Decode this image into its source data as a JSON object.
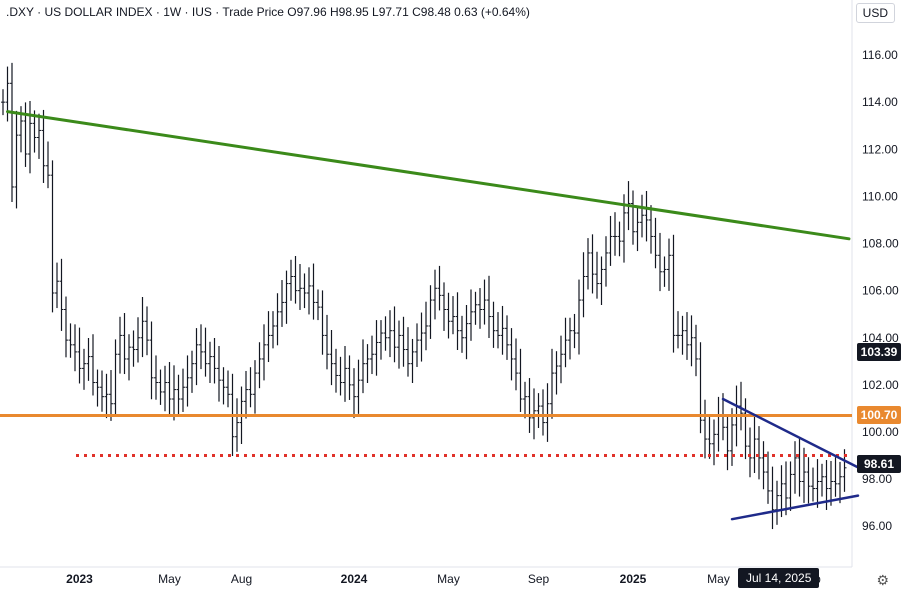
{
  "header": {
    "symbol": ".DXY",
    "sep1": " · ",
    "name": "US DOLLAR INDEX",
    "interval": "1W",
    "exchange": "IUS",
    "price_type": "Trade Price",
    "open_label": "O",
    "open": "97.96",
    "high_label": "H",
    "high": "98.95",
    "low_label": "L",
    "low": "97.71",
    "close_label": "C",
    "close": "98.48",
    "change": "0.63",
    "change_pct": "(+0.64%)"
  },
  "currency": "USD",
  "price_tags": {
    "tag1": {
      "value": "103.39",
      "color": "#131722"
    },
    "tag2": {
      "value": "100.70",
      "color": "#e9892f"
    },
    "tag3": {
      "value": "98.61",
      "color": "#131722"
    }
  },
  "crosshair_date": "Jul 14, 2025",
  "chart_data": {
    "type": "ohlc-bar",
    "title": ".DXY · US DOLLAR INDEX · 1W · IUS",
    "ylim": [
      95.0,
      117.5
    ],
    "yticks": [
      "116.00",
      "114.00",
      "112.00",
      "110.00",
      "108.00",
      "106.00",
      "104.00",
      "102.00",
      "100.00",
      "98.00",
      "96.00"
    ],
    "xticks": [
      "2023",
      "May",
      "Aug",
      "2024",
      "May",
      "Sep",
      "2025",
      "May",
      "p"
    ],
    "grid": false,
    "colors": {
      "bars": "#131722",
      "resistance_trendline": "#3b8a1a",
      "support_level": "#e9892f",
      "dotted_level": "#e0312a",
      "triangle_lines": "#1f2a8a"
    },
    "series": [
      {
        "points": [
          [
            0,
            114.0
          ],
          [
            1,
            114.8
          ],
          [
            2,
            110.4
          ],
          [
            3,
            112.6
          ],
          [
            4,
            113.2
          ],
          [
            5,
            111.8
          ],
          [
            6,
            113.1
          ],
          [
            7,
            112.5
          ],
          [
            8,
            112.8
          ],
          [
            9,
            111.3
          ],
          [
            10,
            110.9
          ],
          [
            11,
            105.9
          ],
          [
            12,
            106.4
          ],
          [
            13,
            105.2
          ],
          [
            14,
            103.9
          ],
          [
            15,
            103.7
          ],
          [
            16,
            103.4
          ],
          [
            17,
            102.7
          ],
          [
            18,
            102.9
          ],
          [
            19,
            103.2
          ],
          [
            20,
            102.1
          ],
          [
            21,
            101.9
          ],
          [
            22,
            101.5
          ],
          [
            23,
            101.6
          ],
          [
            24,
            101.2
          ],
          [
            25,
            103.3
          ],
          [
            26,
            104.1
          ],
          [
            27,
            103.1
          ],
          [
            28,
            103.6
          ],
          [
            29,
            103.5
          ],
          [
            30,
            104.0
          ],
          [
            31,
            104.7
          ],
          [
            32,
            103.9
          ],
          [
            33,
            102.3
          ],
          [
            34,
            102.1
          ],
          [
            35,
            101.7
          ],
          [
            36,
            102.1
          ],
          [
            37,
            101.4
          ],
          [
            38,
            101.8
          ],
          [
            39,
            101.4
          ],
          [
            40,
            101.9
          ],
          [
            41,
            102.3
          ],
          [
            42,
            102.9
          ],
          [
            43,
            103.7
          ],
          [
            44,
            103.4
          ],
          [
            45,
            102.9
          ],
          [
            46,
            103.2
          ],
          [
            47,
            102.7
          ],
          [
            48,
            102.2
          ],
          [
            49,
            101.9
          ],
          [
            50,
            101.6
          ],
          [
            51,
            99.8
          ],
          [
            52,
            100.4
          ],
          [
            53,
            101.3
          ],
          [
            54,
            101.8
          ],
          [
            55,
            101.6
          ],
          [
            56,
            102.5
          ],
          [
            57,
            103.1
          ],
          [
            58,
            103.7
          ],
          [
            59,
            104.1
          ],
          [
            60,
            104.5
          ],
          [
            61,
            105.1
          ],
          [
            62,
            105.5
          ],
          [
            63,
            106.3
          ],
          [
            64,
            106.6
          ],
          [
            65,
            106.0
          ],
          [
            66,
            106.1
          ],
          [
            67,
            105.9
          ],
          [
            68,
            106.2
          ],
          [
            69,
            105.5
          ],
          [
            70,
            105.3
          ],
          [
            71,
            104.1
          ],
          [
            72,
            103.3
          ],
          [
            73,
            102.9
          ],
          [
            74,
            102.4
          ],
          [
            75,
            102.1
          ],
          [
            76,
            102.7
          ],
          [
            77,
            102.0
          ],
          [
            78,
            101.5
          ],
          [
            79,
            102.2
          ],
          [
            80,
            102.9
          ],
          [
            81,
            103.1
          ],
          [
            82,
            103.3
          ],
          [
            83,
            103.8
          ],
          [
            84,
            104.2
          ],
          [
            85,
            104.0
          ],
          [
            86,
            104.3
          ],
          [
            87,
            103.6
          ],
          [
            88,
            104.1
          ],
          [
            89,
            103.5
          ],
          [
            90,
            102.9
          ],
          [
            91,
            103.4
          ],
          [
            92,
            103.9
          ],
          [
            93,
            104.2
          ],
          [
            94,
            104.5
          ],
          [
            95,
            105.6
          ],
          [
            96,
            106.1
          ],
          [
            97,
            105.8
          ],
          [
            98,
            105.2
          ],
          [
            99,
            104.7
          ],
          [
            100,
            104.9
          ],
          [
            101,
            104.3
          ],
          [
            102,
            104.0
          ],
          [
            103,
            104.6
          ],
          [
            104,
            105.1
          ],
          [
            105,
            105.4
          ],
          [
            106,
            105.2
          ],
          [
            107,
            105.6
          ],
          [
            108,
            104.9
          ],
          [
            109,
            104.3
          ],
          [
            110,
            104.1
          ],
          [
            111,
            104.4
          ],
          [
            112,
            103.7
          ],
          [
            113,
            103.1
          ],
          [
            114,
            102.5
          ],
          [
            115,
            101.4
          ],
          [
            116,
            101.5
          ],
          [
            117,
            100.6
          ],
          [
            118,
            100.9
          ],
          [
            119,
            101.1
          ],
          [
            120,
            100.4
          ],
          [
            121,
            101.2
          ],
          [
            122,
            102.5
          ],
          [
            123,
            102.8
          ],
          [
            124,
            103.3
          ],
          [
            125,
            103.9
          ],
          [
            126,
            104.3
          ],
          [
            127,
            104.2
          ],
          [
            128,
            105.6
          ],
          [
            129,
            106.6
          ],
          [
            130,
            107.6
          ],
          [
            131,
            106.7
          ],
          [
            132,
            106.3
          ],
          [
            133,
            106.9
          ],
          [
            134,
            107.6
          ],
          [
            135,
            108.3
          ],
          [
            136,
            108.3
          ],
          [
            137,
            108.1
          ],
          [
            138,
            109.3
          ],
          [
            139,
            109.7
          ],
          [
            140,
            108.5
          ],
          [
            141,
            108.9
          ],
          [
            142,
            109.2
          ],
          [
            143,
            109.0
          ],
          [
            144,
            108.3
          ],
          [
            145,
            107.5
          ],
          [
            146,
            106.8
          ],
          [
            147,
            106.9
          ],
          [
            148,
            107.5
          ],
          [
            149,
            104.1
          ],
          [
            150,
            104.1
          ],
          [
            151,
            104.3
          ],
          [
            152,
            103.7
          ],
          [
            153,
            104.0
          ],
          [
            154,
            103.1
          ],
          [
            155,
            100.5
          ],
          [
            156,
            99.7
          ],
          [
            157,
            99.5
          ],
          [
            158,
            99.9
          ],
          [
            159,
            100.7
          ],
          [
            160,
            100.2
          ],
          [
            161,
            99.2
          ],
          [
            162,
            100.3
          ],
          [
            163,
            101.1
          ],
          [
            164,
            100.8
          ],
          [
            165,
            99.4
          ],
          [
            166,
            98.9
          ],
          [
            167,
            99.7
          ],
          [
            168,
            98.9
          ],
          [
            169,
            98.3
          ],
          [
            170,
            97.5
          ],
          [
            171,
            96.7
          ],
          [
            172,
            97.3
          ],
          [
            173,
            97.8
          ],
          [
            174,
            97.2
          ],
          [
            175,
            98.2
          ],
          [
            176,
            98.9
          ],
          [
            177,
            97.9
          ],
          [
            178,
            98.3
          ],
          [
            179,
            97.7
          ],
          [
            180,
            97.6
          ],
          [
            181,
            97.9
          ],
          [
            182,
            98.1
          ],
          [
            183,
            97.6
          ],
          [
            184,
            97.9
          ],
          [
            185,
            97.8
          ],
          [
            186,
            98.1
          ],
          [
            187,
            98.48
          ]
        ]
      }
    ],
    "annotations": [
      {
        "kind": "trendline",
        "color": "green",
        "from": [
          1,
          113.6
        ],
        "to": [
          188,
          108.2
        ]
      },
      {
        "kind": "horizontal",
        "color": "orange",
        "value": 100.7
      },
      {
        "kind": "horizontal-dotted",
        "color": "red",
        "value": 99.0,
        "from_x": 0
      },
      {
        "kind": "trendline",
        "color": "blue",
        "from": [
          160,
          101.4
        ],
        "to": [
          190,
          98.5
        ]
      },
      {
        "kind": "trendline",
        "color": "blue",
        "from": [
          162,
          96.3
        ],
        "to": [
          190,
          97.3
        ]
      }
    ]
  }
}
